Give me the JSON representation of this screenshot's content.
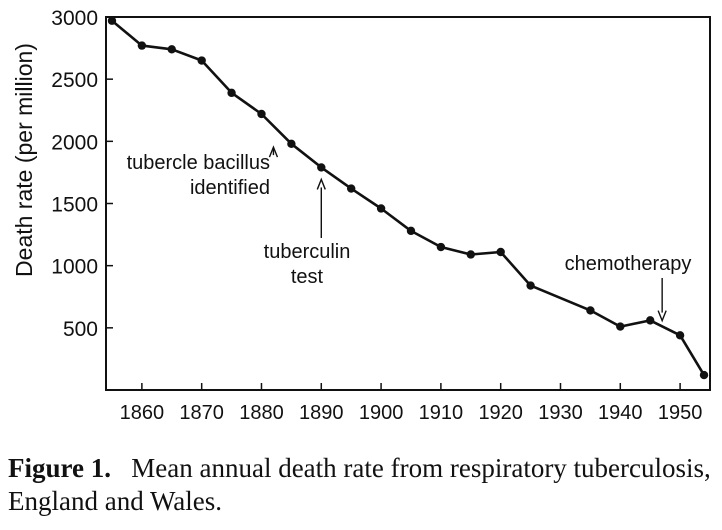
{
  "chart_data": {
    "type": "line",
    "xlabel": "",
    "ylabel": "Death rate  (per million)",
    "xlim": [
      1854,
      1955
    ],
    "ylim": [
      0,
      3000
    ],
    "x_ticks": [
      1860,
      1870,
      1880,
      1890,
      1900,
      1910,
      1920,
      1930,
      1940,
      1950
    ],
    "y_ticks": [
      500,
      1000,
      1500,
      2000,
      2500,
      3000
    ],
    "grid": false,
    "series": [
      {
        "x": [
          1855,
          1860,
          1865,
          1870,
          1875,
          1880,
          1885,
          1890,
          1895,
          1900,
          1905,
          1910,
          1915,
          1920,
          1925,
          1935,
          1940,
          1945,
          1950,
          1954
        ],
        "y": [
          2970,
          2770,
          2740,
          2650,
          2390,
          2220,
          1980,
          1790,
          1620,
          1460,
          1280,
          1150,
          1090,
          1110,
          840,
          640,
          510,
          560,
          440,
          120
        ]
      }
    ],
    "annotations": [
      {
        "text_lines": [
          "tubercle bacillus",
          "identified"
        ],
        "x": 1882,
        "y": 2050
      },
      {
        "text_lines": [
          "tuberculin",
          "test"
        ],
        "x": 1890,
        "y": 1790
      },
      {
        "text_lines": [
          "chemotherapy"
        ],
        "x": 1947,
        "y": 510
      }
    ]
  },
  "caption": {
    "label": "Figure 1.",
    "text": "Mean annual death rate from respiratory tuberculosis, England and Wales."
  },
  "colors": {
    "ink": "#111111",
    "background": "#ffffff"
  }
}
